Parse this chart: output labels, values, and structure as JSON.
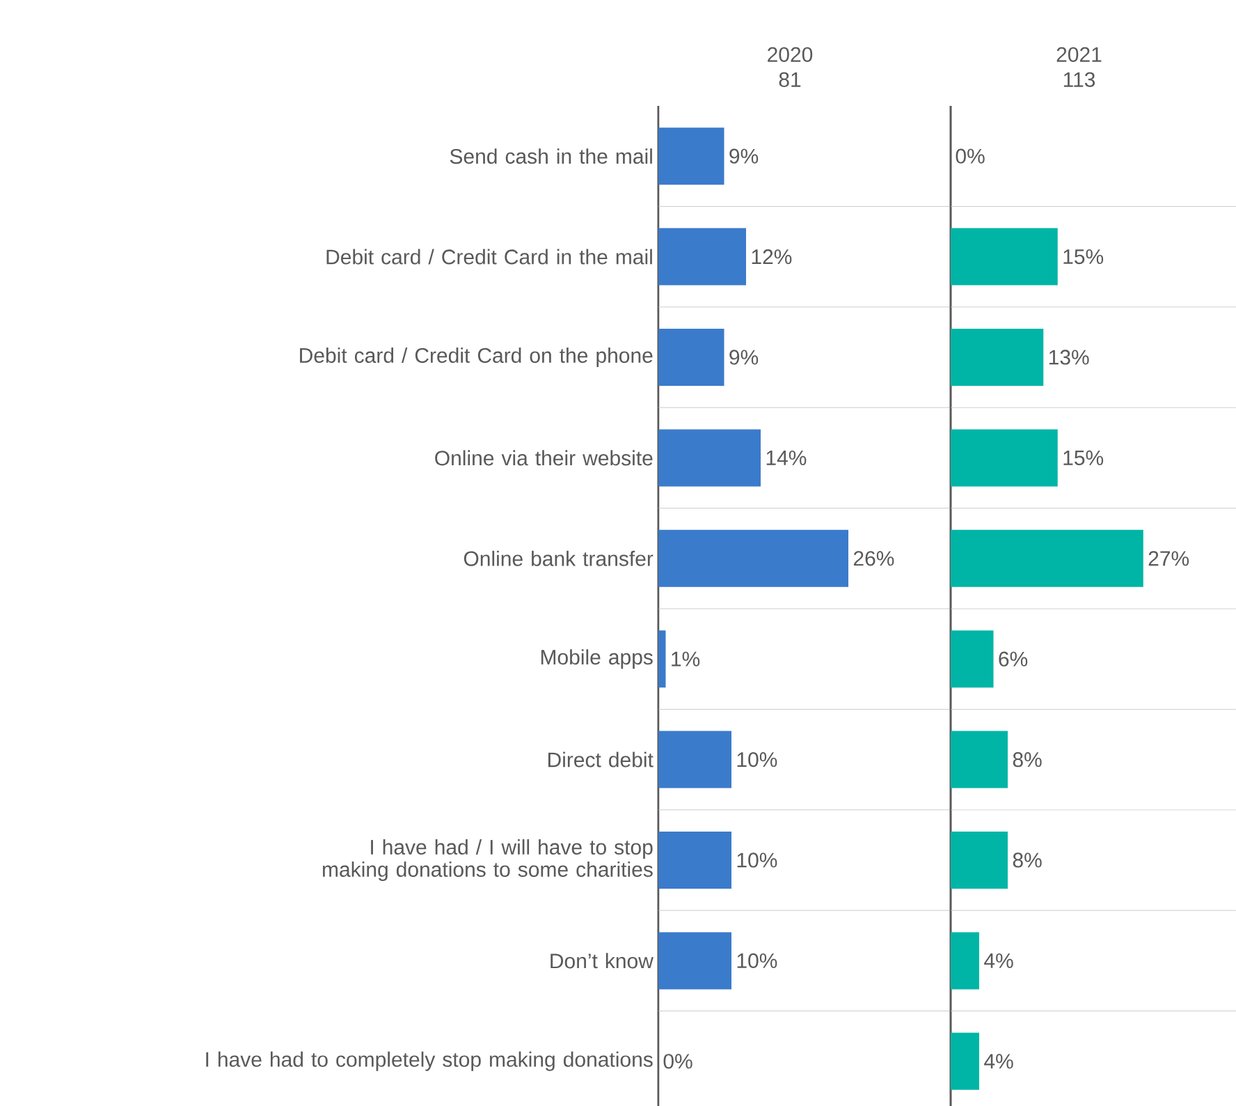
{
  "chart_data": [
    {
      "type": "bar",
      "orientation": "horizontal",
      "title": "2020",
      "subtitle": "81",
      "color": "#3b7bcb",
      "xlim": [
        0,
        40
      ],
      "tick_labels": "y",
      "categories": [
        "Send cash in the mail",
        "Debit card / Credit Card in the mail",
        "Debit card / Credit Card on the phone",
        "Online via their website",
        "Online bank transfer",
        "Mobile apps",
        "Direct debit",
        "I have had / I will have to stop making donations to some charities",
        "Don’t know",
        "I have had to completely stop making donations"
      ],
      "values": [
        9,
        12,
        9,
        14,
        26,
        1,
        10,
        10,
        10,
        0
      ],
      "value_labels": [
        "9%",
        "12%",
        "9%",
        "14%",
        "26%",
        "1%",
        "10%",
        "10%",
        "10%",
        "0%"
      ]
    },
    {
      "type": "bar",
      "orientation": "horizontal",
      "title": "2021",
      "subtitle": "113",
      "color": "#00b5a6",
      "xlim": [
        0,
        40
      ],
      "tick_labels": false,
      "categories": [
        null,
        null,
        null,
        null,
        null,
        null,
        null,
        null,
        null,
        null
      ],
      "values": [
        0,
        15,
        13,
        15,
        27,
        6,
        8,
        8,
        4,
        4
      ],
      "value_labels": [
        "0%",
        "15%",
        "13%",
        "15%",
        "27%",
        "6%",
        "8%",
        "8%",
        "4%",
        "4%"
      ]
    }
  ]
}
